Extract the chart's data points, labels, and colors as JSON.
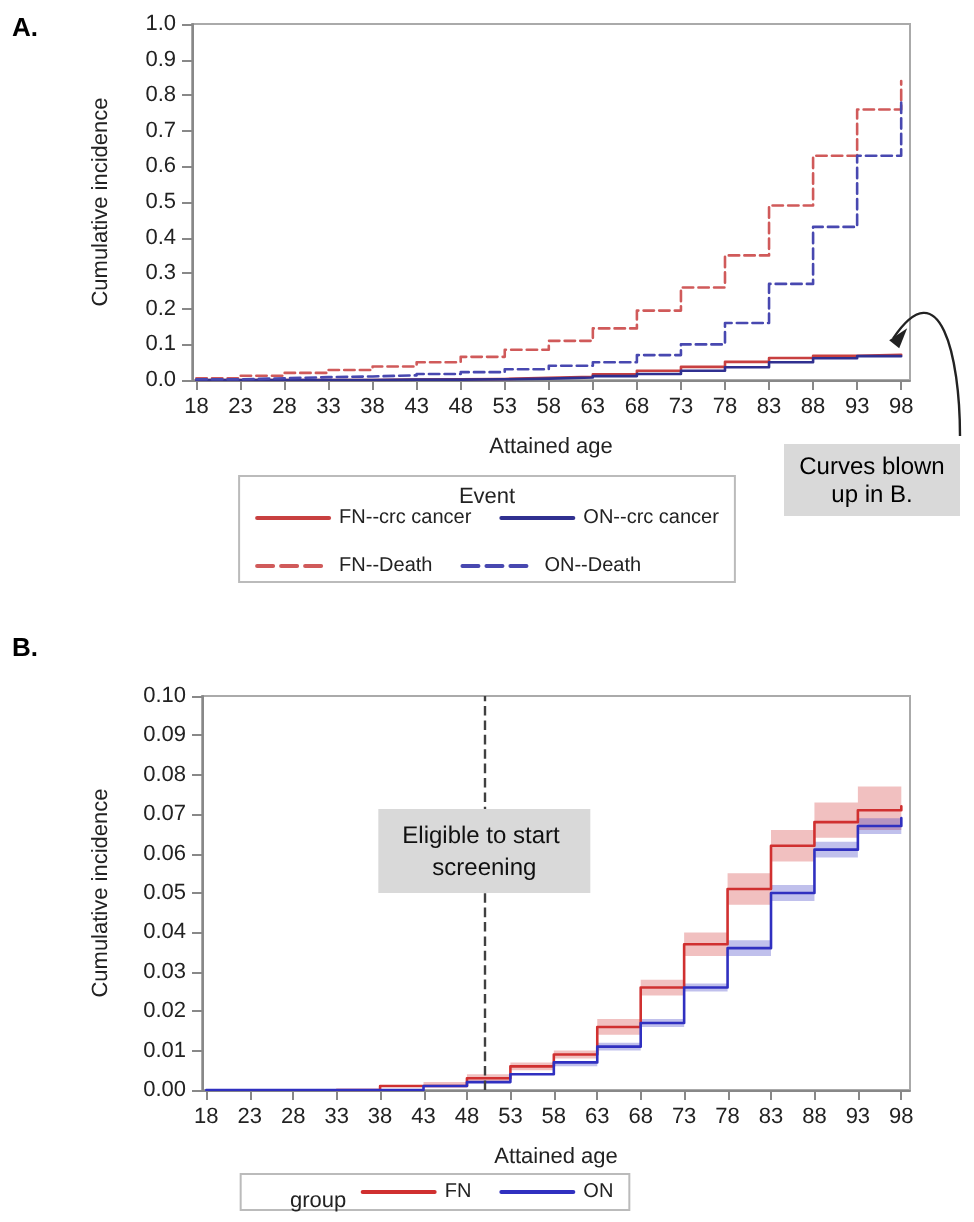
{
  "chart_data": [
    {
      "type": "step",
      "title": "A.",
      "xlabel": "Attained age",
      "ylabel": "Cumulative incidence",
      "legend_title": "Event",
      "legend": "bottom",
      "grid": false,
      "marker": "none",
      "xlim": [
        17.5,
        99
      ],
      "xticks": [
        18,
        23,
        28,
        33,
        38,
        43,
        48,
        53,
        58,
        63,
        68,
        73,
        78,
        83,
        88,
        93,
        98
      ],
      "ylim": [
        0,
        1
      ],
      "yticks": [
        {
          "value": 0,
          "label": "0.0"
        },
        {
          "value": 0.1,
          "label": "0.1"
        },
        {
          "value": 0.2,
          "label": "0.2"
        },
        {
          "value": 0.3,
          "label": "0.3"
        },
        {
          "value": 0.4,
          "label": "0.4"
        },
        {
          "value": 0.5,
          "label": "0.5"
        },
        {
          "value": 0.6,
          "label": "0.6"
        },
        {
          "value": 0.7,
          "label": "0.7"
        },
        {
          "value": 0.8,
          "label": "0.8"
        },
        {
          "value": 0.9,
          "label": "0.9"
        },
        {
          "value": 1,
          "label": "1.0"
        }
      ],
      "x": [
        18,
        23,
        28,
        33,
        38,
        43,
        48,
        53,
        58,
        63,
        68,
        73,
        78,
        83,
        88,
        93,
        98
      ],
      "series": [
        {
          "name": "FN--crc cancer",
          "color": "#c84040",
          "line_style": "solid",
          "values": [
            0,
            0,
            0,
            0,
            0.001,
            0.002,
            0.003,
            0.006,
            0.009,
            0.016,
            0.026,
            0.037,
            0.051,
            0.062,
            0.068,
            0.071,
            0.072
          ]
        },
        {
          "name": "ON--crc cancer",
          "color": "#303090",
          "line_style": "solid",
          "values": [
            0,
            0,
            0,
            0,
            0.001,
            0.001,
            0.002,
            0.004,
            0.007,
            0.011,
            0.017,
            0.026,
            0.036,
            0.05,
            0.061,
            0.067,
            0.069
          ]
        },
        {
          "name": "FN--Death",
          "color": "#d05a5a",
          "line_style": "dashed",
          "values": [
            0.005,
            0.012,
            0.02,
            0.028,
            0.038,
            0.05,
            0.065,
            0.085,
            0.11,
            0.145,
            0.195,
            0.26,
            0.35,
            0.49,
            0.63,
            0.76,
            0.84
          ]
        },
        {
          "name": "ON--Death",
          "color": "#4848b0",
          "line_style": "dashed",
          "values": [
            0.002,
            0.005,
            0.008,
            0.01,
            0.013,
            0.017,
            0.022,
            0.03,
            0.04,
            0.05,
            0.07,
            0.1,
            0.16,
            0.27,
            0.43,
            0.63,
            0.79
          ]
        }
      ],
      "annotations": [
        "Curves blown up in B."
      ]
    },
    {
      "type": "step",
      "title": "B.",
      "xlabel": "Attained age",
      "ylabel": "Cumulative incidence",
      "legend_title": "group",
      "legend": "bottom",
      "grid": false,
      "marker": "none",
      "xlim": [
        17.5,
        99
      ],
      "xticks": [
        18,
        23,
        28,
        33,
        38,
        43,
        48,
        53,
        58,
        63,
        68,
        73,
        78,
        83,
        88,
        93,
        98
      ],
      "ylim": [
        0,
        0.1
      ],
      "yticks": [
        {
          "value": 0,
          "label": "0.00"
        },
        {
          "value": 0.01,
          "label": "0.01"
        },
        {
          "value": 0.02,
          "label": "0.02"
        },
        {
          "value": 0.03,
          "label": "0.03"
        },
        {
          "value": 0.04,
          "label": "0.04"
        },
        {
          "value": 0.05,
          "label": "0.05"
        },
        {
          "value": 0.06,
          "label": "0.06"
        },
        {
          "value": 0.07,
          "label": "0.07"
        },
        {
          "value": 0.08,
          "label": "0.08"
        },
        {
          "value": 0.09,
          "label": "0.09"
        },
        {
          "value": 0.1,
          "label": "0.10"
        }
      ],
      "x": [
        18,
        23,
        28,
        33,
        38,
        43,
        48,
        53,
        58,
        63,
        68,
        73,
        78,
        83,
        88,
        93,
        98
      ],
      "series": [
        {
          "name": "FN",
          "color": "#d03030",
          "line_style": "solid",
          "values": [
            null,
            null,
            null,
            0,
            0.001,
            0.001,
            0.003,
            0.006,
            0.009,
            0.016,
            0.026,
            0.037,
            0.051,
            0.062,
            0.068,
            0.071,
            0.072
          ],
          "lower": [
            0,
            0,
            0,
            0,
            0.001,
            0.001,
            0.002,
            0.005,
            0.008,
            0.014,
            0.024,
            0.034,
            0.047,
            0.058,
            0.064,
            0.066,
            0.066
          ],
          "upper": [
            0,
            0,
            0,
            0,
            0.001,
            0.002,
            0.004,
            0.007,
            0.01,
            0.018,
            0.028,
            0.04,
            0.055,
            0.066,
            0.073,
            0.077,
            0.078
          ]
        },
        {
          "name": "ON",
          "color": "#3030c0",
          "line_style": "solid",
          "values": [
            0,
            0,
            0,
            0,
            0,
            0.001,
            0.002,
            0.004,
            0.007,
            0.011,
            0.017,
            0.026,
            0.036,
            0.05,
            0.061,
            0.067,
            0.069
          ],
          "lower": [
            0,
            0,
            0,
            0,
            0,
            0.001,
            0.002,
            0.004,
            0.006,
            0.01,
            0.016,
            0.025,
            0.034,
            0.048,
            0.059,
            0.065,
            0.066
          ],
          "upper": [
            0,
            0,
            0,
            0,
            0,
            0.001,
            0.002,
            0.004,
            0.007,
            0.012,
            0.018,
            0.027,
            0.038,
            0.052,
            0.063,
            0.069,
            0.072
          ]
        }
      ],
      "ref_lines": [
        {
          "axis": "x",
          "value": 50,
          "label": "Eligible to start screening",
          "color": "#404040",
          "line_style": "dashed"
        }
      ]
    }
  ]
}
